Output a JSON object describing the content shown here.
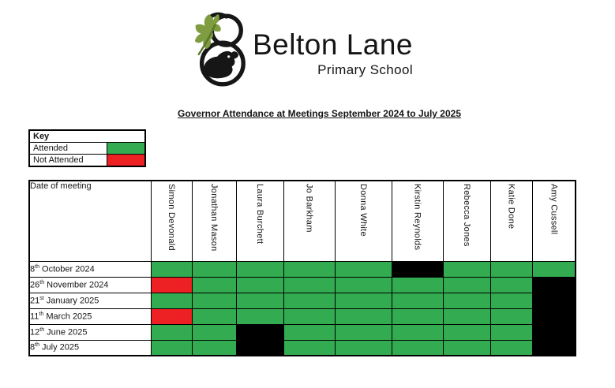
{
  "logo": {
    "name": "Belton Lane",
    "subtitle": "Primary School",
    "leaf_color": "#7e9c40",
    "ink_color": "#161616"
  },
  "title": "Governor Attendance at Meetings September 2024 to July 2025",
  "key": {
    "header": "Key",
    "items": [
      {
        "label": "Attended",
        "status": "attended",
        "color": "#33ab50"
      },
      {
        "label": "Not Attended",
        "status": "not_attended",
        "color": "#ed2024"
      }
    ]
  },
  "colors": {
    "attended": "#33ab50",
    "not_attended": "#ed2024",
    "no_data": "#000000"
  },
  "attendance": {
    "date_column_header": "Date of meeting",
    "governors": [
      "Simon Devonald",
      "Jonathan Mason",
      "Laura Burchett",
      "Jo Barkham",
      "Donna White",
      "Kirstin Reynolds",
      "Rebecca Jones",
      "Katie Done",
      "Amy Cussell"
    ],
    "rows": [
      {
        "date": {
          "day": "8",
          "suffix": "th",
          "rest": "October 2024"
        },
        "cells": [
          "attended",
          "attended",
          "attended",
          "attended",
          "attended",
          "no_data",
          "attended",
          "attended",
          "attended"
        ]
      },
      {
        "date": {
          "day": "26",
          "suffix": "th",
          "rest": "November 2024"
        },
        "cells": [
          "not_attended",
          "attended",
          "attended",
          "attended",
          "attended",
          "attended",
          "attended",
          "attended",
          "no_data"
        ]
      },
      {
        "date": {
          "day": "21",
          "suffix": "st",
          "rest": "January 2025"
        },
        "cells": [
          "attended",
          "attended",
          "attended",
          "attended",
          "attended",
          "attended",
          "attended",
          "attended",
          "no_data"
        ]
      },
      {
        "date": {
          "day": "11",
          "suffix": "th",
          "rest": "March 2025"
        },
        "cells": [
          "not_attended",
          "attended",
          "attended",
          "attended",
          "attended",
          "attended",
          "attended",
          "attended",
          "no_data"
        ]
      },
      {
        "date": {
          "day": "12",
          "suffix": "th",
          "rest": "June 2025"
        },
        "cells": [
          "attended",
          "attended",
          "no_data",
          "attended",
          "attended",
          "attended",
          "attended",
          "attended",
          "no_data"
        ]
      },
      {
        "date": {
          "day": "8",
          "suffix": "th",
          "rest": "July 2025"
        },
        "cells": [
          "attended",
          "attended",
          "no_data",
          "attended",
          "attended",
          "attended",
          "attended",
          "attended",
          "no_data"
        ]
      }
    ]
  }
}
